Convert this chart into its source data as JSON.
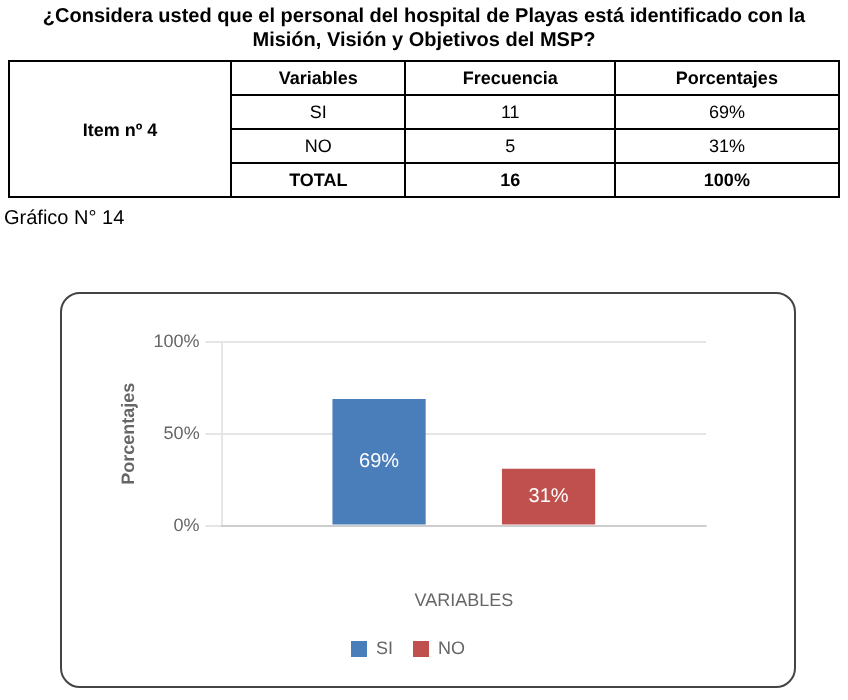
{
  "chart_data": {
    "type": "bar",
    "title": "¿Considera usted que el personal del hospital de Playas está identificado con la Misión, Visión y Objetivos del MSP?",
    "subtitle": "Gráfico N° 14",
    "xlabel": "VARIABLES",
    "ylabel": "Porcentajes",
    "categories": [
      null
    ],
    "series": [
      {
        "name": "SI",
        "color": "#4a7ebb",
        "values": [
          69
        ],
        "value_labels": [
          "69%"
        ]
      },
      {
        "name": "NO",
        "color": "#c0504d",
        "values": [
          31
        ],
        "value_labels": [
          "31%"
        ]
      }
    ],
    "ylim": [
      0,
      100
    ],
    "yticks": [
      {
        "value": 0,
        "label": "0%"
      },
      {
        "value": 50,
        "label": "50%"
      },
      {
        "value": 100,
        "label": "100%"
      }
    ],
    "grid": "y",
    "legend": "bottom",
    "annotations": [
      "Item nº 4",
      "Variables",
      "Frecuencia",
      "Porcentajes",
      "SI",
      "11",
      "69%",
      "NO",
      "5",
      "31%",
      "TOTAL",
      "16",
      "100%"
    ]
  }
}
